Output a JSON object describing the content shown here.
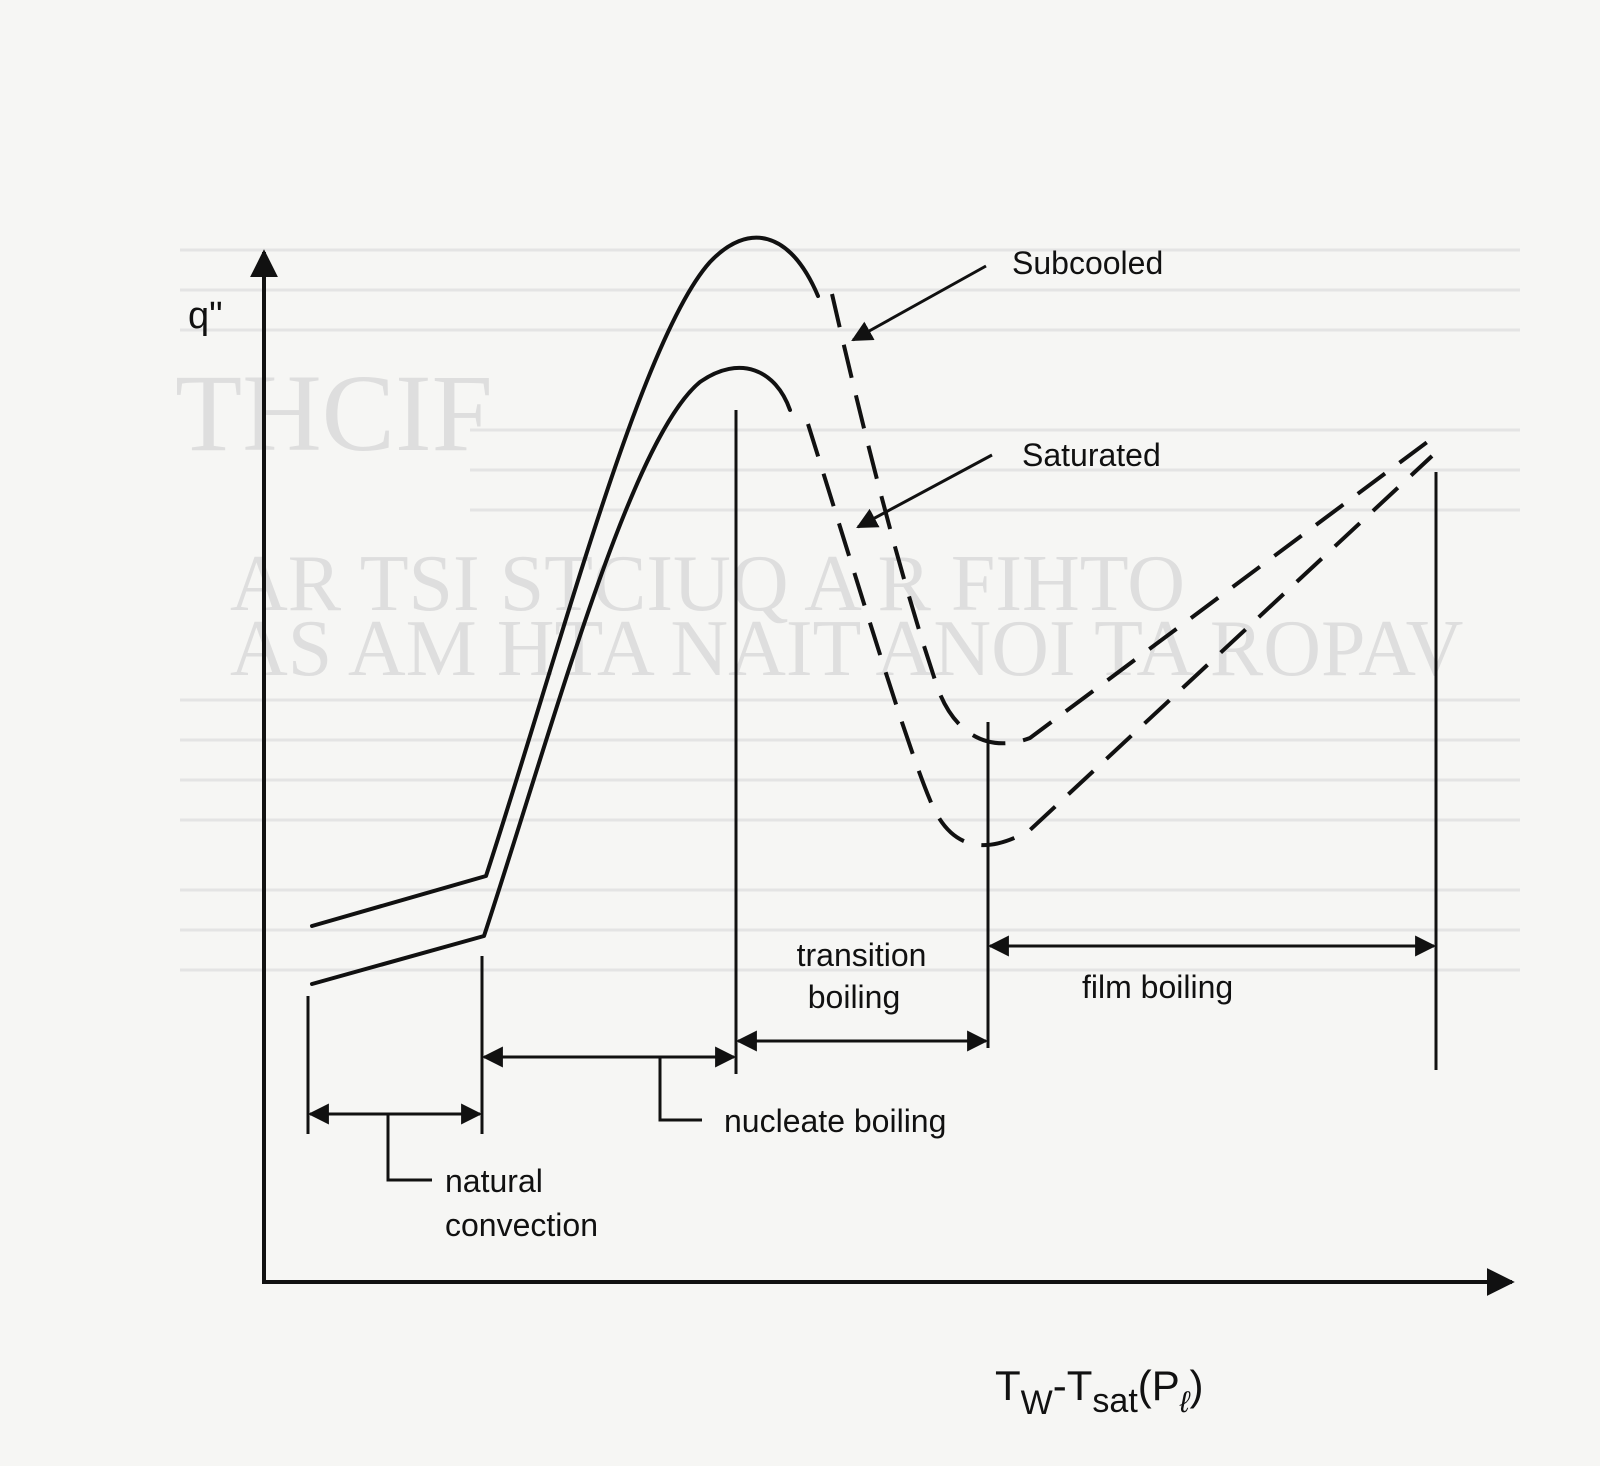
{
  "diagram": {
    "y_axis_label": "q\"",
    "x_axis_label": {
      "base1": "T",
      "sub1": "W",
      "mid": "-T",
      "sub2": "sat",
      "paren_open": "(P",
      "sub3": "ℓ",
      "paren_close": ")"
    },
    "curves": [
      {
        "name": "Subcooled",
        "label": "Subcooled"
      },
      {
        "name": "Saturated",
        "label": "Saturated"
      }
    ],
    "regions": {
      "natural_convection": [
        "natural",
        "convection"
      ],
      "nucleate_boiling": "nucleate boiling",
      "transition_boiling": [
        "transition",
        "boiling"
      ],
      "film_boiling": "film boiling"
    },
    "colors": {
      "ink": "#111111",
      "paper": "#f6f6f4",
      "bleed": "#dcdcdc"
    }
  }
}
